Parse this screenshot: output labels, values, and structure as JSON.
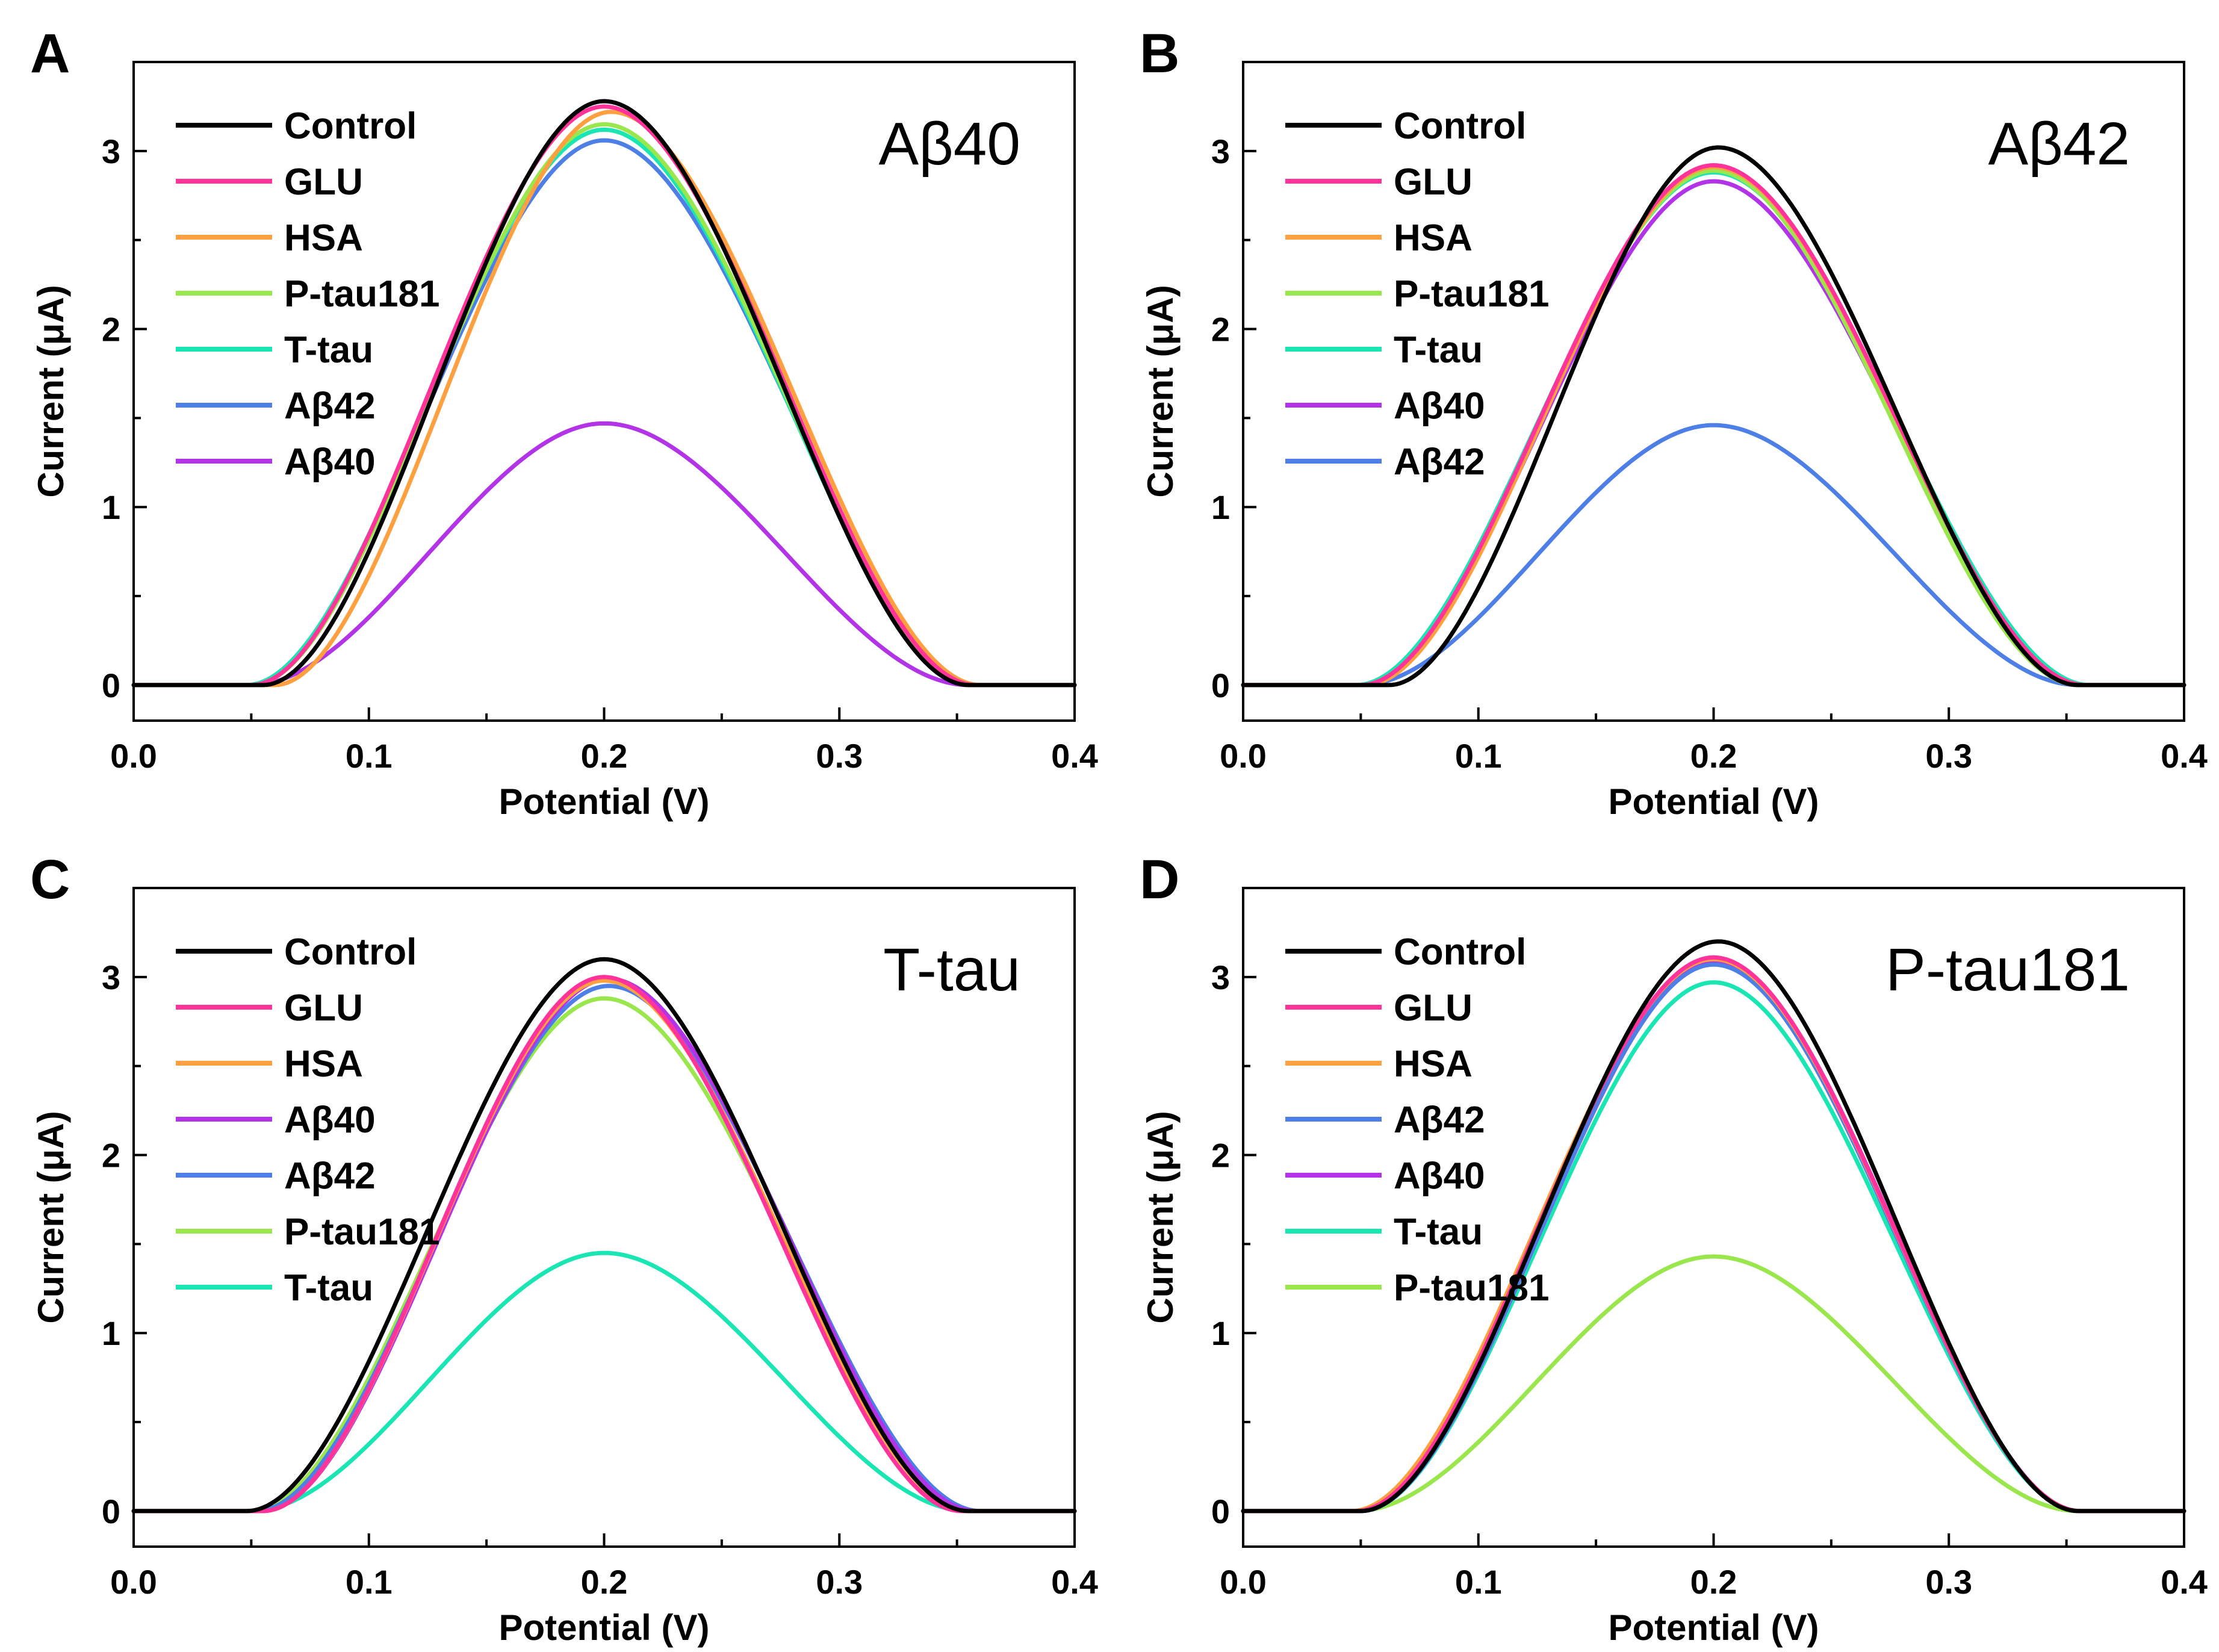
{
  "chart_data": [
    {
      "type": "line",
      "panel": "A",
      "title": "Aβ40",
      "xlabel": "Potential (V)",
      "ylabel": "Current (μA)",
      "xlim": [
        0.0,
        0.4
      ],
      "ylim": [
        -0.2,
        3.5
      ],
      "xticks": [
        "0.0",
        "0.1",
        "0.2",
        "0.3",
        "0.4"
      ],
      "yticks": [
        "0",
        "1",
        "2",
        "3"
      ],
      "legend_position": "top-left",
      "series": [
        {
          "name": "Control",
          "color": "#000000",
          "peak": 3.28,
          "center": 0.2,
          "start": 0.055,
          "end": 0.355
        },
        {
          "name": "GLU",
          "color": "#ff3399",
          "peak": 3.25,
          "center": 0.2,
          "start": 0.05,
          "end": 0.358
        },
        {
          "name": "HSA",
          "color": "#ffa040",
          "peak": 3.22,
          "center": 0.203,
          "start": 0.06,
          "end": 0.36
        },
        {
          "name": "P-tau181",
          "color": "#99e64d",
          "peak": 3.15,
          "center": 0.2,
          "start": 0.05,
          "end": 0.358
        },
        {
          "name": "T-tau",
          "color": "#1ae6b3",
          "peak": 3.12,
          "center": 0.2,
          "start": 0.048,
          "end": 0.358
        },
        {
          "name": "Aβ42",
          "color": "#4d7fe6",
          "peak": 3.06,
          "center": 0.2,
          "start": 0.048,
          "end": 0.36
        },
        {
          "name": "Aβ40",
          "color": "#b333e6",
          "peak": 1.47,
          "center": 0.2,
          "start": 0.05,
          "end": 0.355
        }
      ]
    },
    {
      "type": "line",
      "panel": "B",
      "title": "Aβ42",
      "xlabel": "Potential (V)",
      "ylabel": "Current (μA)",
      "xlim": [
        0.0,
        0.4
      ],
      "ylim": [
        -0.2,
        3.5
      ],
      "xticks": [
        "0.0",
        "0.1",
        "0.2",
        "0.3",
        "0.4"
      ],
      "yticks": [
        "0",
        "1",
        "2",
        "3"
      ],
      "legend_position": "top-left",
      "series": [
        {
          "name": "Control",
          "color": "#000000",
          "peak": 3.02,
          "center": 0.202,
          "start": 0.062,
          "end": 0.355
        },
        {
          "name": "GLU",
          "color": "#ff3399",
          "peak": 2.92,
          "center": 0.2,
          "start": 0.05,
          "end": 0.358
        },
        {
          "name": "HSA",
          "color": "#ffa040",
          "peak": 2.91,
          "center": 0.2,
          "start": 0.052,
          "end": 0.358
        },
        {
          "name": "P-tau181",
          "color": "#99e64d",
          "peak": 2.89,
          "center": 0.2,
          "start": 0.05,
          "end": 0.355
        },
        {
          "name": "T-tau",
          "color": "#1ae6b3",
          "peak": 2.88,
          "center": 0.2,
          "start": 0.048,
          "end": 0.36
        },
        {
          "name": "Aβ40",
          "color": "#b333e6",
          "peak": 2.83,
          "center": 0.2,
          "start": 0.05,
          "end": 0.358
        },
        {
          "name": "Aβ42",
          "color": "#4d7fe6",
          "peak": 1.46,
          "center": 0.2,
          "start": 0.05,
          "end": 0.355
        }
      ]
    },
    {
      "type": "line",
      "panel": "C",
      "title": "T-tau",
      "xlabel": "Potential (V)",
      "ylabel": "Current (μA)",
      "xlim": [
        0.0,
        0.4
      ],
      "ylim": [
        -0.2,
        3.5
      ],
      "xticks": [
        "0.0",
        "0.1",
        "0.2",
        "0.3",
        "0.4"
      ],
      "yticks": [
        "0",
        "1",
        "2",
        "3"
      ],
      "legend_position": "top-left",
      "series": [
        {
          "name": "Control",
          "color": "#000000",
          "peak": 3.1,
          "center": 0.2,
          "start": 0.048,
          "end": 0.355
        },
        {
          "name": "GLU",
          "color": "#ff3399",
          "peak": 3.0,
          "center": 0.2,
          "start": 0.055,
          "end": 0.352
        },
        {
          "name": "HSA",
          "color": "#ffa040",
          "peak": 2.98,
          "center": 0.2,
          "start": 0.055,
          "end": 0.355
        },
        {
          "name": "Aβ40",
          "color": "#b333e6",
          "peak": 2.99,
          "center": 0.202,
          "start": 0.055,
          "end": 0.358
        },
        {
          "name": "Aβ42",
          "color": "#4d7fe6",
          "peak": 2.95,
          "center": 0.202,
          "start": 0.052,
          "end": 0.36
        },
        {
          "name": "P-tau181",
          "color": "#99e64d",
          "peak": 2.88,
          "center": 0.2,
          "start": 0.05,
          "end": 0.358
        },
        {
          "name": "T-tau",
          "color": "#1ae6b3",
          "peak": 1.45,
          "center": 0.2,
          "start": 0.05,
          "end": 0.355
        }
      ]
    },
    {
      "type": "line",
      "panel": "D",
      "title": "P-tau181",
      "xlabel": "Potential (V)",
      "ylabel": "Current (μA)",
      "xlim": [
        0.0,
        0.4
      ],
      "ylim": [
        -0.2,
        3.5
      ],
      "xticks": [
        "0.0",
        "0.1",
        "0.2",
        "0.3",
        "0.4"
      ],
      "yticks": [
        "0",
        "1",
        "2",
        "3"
      ],
      "legend_position": "top-left",
      "series": [
        {
          "name": "Control",
          "color": "#000000",
          "peak": 3.2,
          "center": 0.202,
          "start": 0.05,
          "end": 0.355
        },
        {
          "name": "GLU",
          "color": "#ff3399",
          "peak": 3.11,
          "center": 0.2,
          "start": 0.048,
          "end": 0.356
        },
        {
          "name": "HSA",
          "color": "#ffa040",
          "peak": 3.1,
          "center": 0.2,
          "start": 0.046,
          "end": 0.356
        },
        {
          "name": "Aβ42",
          "color": "#4d7fe6",
          "peak": 3.07,
          "center": 0.2,
          "start": 0.05,
          "end": 0.356
        },
        {
          "name": "Aβ40",
          "color": "#b333e6",
          "peak": 3.09,
          "center": 0.201,
          "start": 0.05,
          "end": 0.356
        },
        {
          "name": "T-tau",
          "color": "#1ae6b3",
          "peak": 2.97,
          "center": 0.2,
          "start": 0.05,
          "end": 0.356
        },
        {
          "name": "P-tau181",
          "color": "#99e64d",
          "peak": 1.43,
          "center": 0.2,
          "start": 0.048,
          "end": 0.355
        }
      ]
    }
  ]
}
